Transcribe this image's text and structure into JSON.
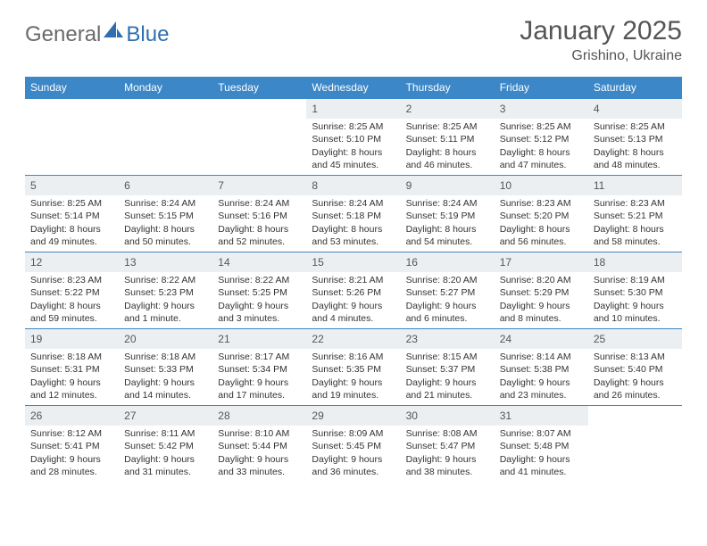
{
  "logo": {
    "part1": "General",
    "part2": "Blue"
  },
  "title": "January 2025",
  "location": "Grishino, Ukraine",
  "colors": {
    "header_bg": "#3c87c7",
    "header_text": "#ffffff",
    "daynum_bg": "#eceff1",
    "border": "#3c87c7",
    "logo_gray": "#6a6a6a",
    "logo_blue": "#2f6fb0",
    "body_text": "#333333"
  },
  "day_headers": [
    "Sunday",
    "Monday",
    "Tuesday",
    "Wednesday",
    "Thursday",
    "Friday",
    "Saturday"
  ],
  "weeks": [
    [
      {
        "n": "",
        "sr": "",
        "ss": "",
        "dl": ""
      },
      {
        "n": "",
        "sr": "",
        "ss": "",
        "dl": ""
      },
      {
        "n": "",
        "sr": "",
        "ss": "",
        "dl": ""
      },
      {
        "n": "1",
        "sr": "Sunrise: 8:25 AM",
        "ss": "Sunset: 5:10 PM",
        "dl": "Daylight: 8 hours and 45 minutes."
      },
      {
        "n": "2",
        "sr": "Sunrise: 8:25 AM",
        "ss": "Sunset: 5:11 PM",
        "dl": "Daylight: 8 hours and 46 minutes."
      },
      {
        "n": "3",
        "sr": "Sunrise: 8:25 AM",
        "ss": "Sunset: 5:12 PM",
        "dl": "Daylight: 8 hours and 47 minutes."
      },
      {
        "n": "4",
        "sr": "Sunrise: 8:25 AM",
        "ss": "Sunset: 5:13 PM",
        "dl": "Daylight: 8 hours and 48 minutes."
      }
    ],
    [
      {
        "n": "5",
        "sr": "Sunrise: 8:25 AM",
        "ss": "Sunset: 5:14 PM",
        "dl": "Daylight: 8 hours and 49 minutes."
      },
      {
        "n": "6",
        "sr": "Sunrise: 8:24 AM",
        "ss": "Sunset: 5:15 PM",
        "dl": "Daylight: 8 hours and 50 minutes."
      },
      {
        "n": "7",
        "sr": "Sunrise: 8:24 AM",
        "ss": "Sunset: 5:16 PM",
        "dl": "Daylight: 8 hours and 52 minutes."
      },
      {
        "n": "8",
        "sr": "Sunrise: 8:24 AM",
        "ss": "Sunset: 5:18 PM",
        "dl": "Daylight: 8 hours and 53 minutes."
      },
      {
        "n": "9",
        "sr": "Sunrise: 8:24 AM",
        "ss": "Sunset: 5:19 PM",
        "dl": "Daylight: 8 hours and 54 minutes."
      },
      {
        "n": "10",
        "sr": "Sunrise: 8:23 AM",
        "ss": "Sunset: 5:20 PM",
        "dl": "Daylight: 8 hours and 56 minutes."
      },
      {
        "n": "11",
        "sr": "Sunrise: 8:23 AM",
        "ss": "Sunset: 5:21 PM",
        "dl": "Daylight: 8 hours and 58 minutes."
      }
    ],
    [
      {
        "n": "12",
        "sr": "Sunrise: 8:23 AM",
        "ss": "Sunset: 5:22 PM",
        "dl": "Daylight: 8 hours and 59 minutes."
      },
      {
        "n": "13",
        "sr": "Sunrise: 8:22 AM",
        "ss": "Sunset: 5:23 PM",
        "dl": "Daylight: 9 hours and 1 minute."
      },
      {
        "n": "14",
        "sr": "Sunrise: 8:22 AM",
        "ss": "Sunset: 5:25 PM",
        "dl": "Daylight: 9 hours and 3 minutes."
      },
      {
        "n": "15",
        "sr": "Sunrise: 8:21 AM",
        "ss": "Sunset: 5:26 PM",
        "dl": "Daylight: 9 hours and 4 minutes."
      },
      {
        "n": "16",
        "sr": "Sunrise: 8:20 AM",
        "ss": "Sunset: 5:27 PM",
        "dl": "Daylight: 9 hours and 6 minutes."
      },
      {
        "n": "17",
        "sr": "Sunrise: 8:20 AM",
        "ss": "Sunset: 5:29 PM",
        "dl": "Daylight: 9 hours and 8 minutes."
      },
      {
        "n": "18",
        "sr": "Sunrise: 8:19 AM",
        "ss": "Sunset: 5:30 PM",
        "dl": "Daylight: 9 hours and 10 minutes."
      }
    ],
    [
      {
        "n": "19",
        "sr": "Sunrise: 8:18 AM",
        "ss": "Sunset: 5:31 PM",
        "dl": "Daylight: 9 hours and 12 minutes."
      },
      {
        "n": "20",
        "sr": "Sunrise: 8:18 AM",
        "ss": "Sunset: 5:33 PM",
        "dl": "Daylight: 9 hours and 14 minutes."
      },
      {
        "n": "21",
        "sr": "Sunrise: 8:17 AM",
        "ss": "Sunset: 5:34 PM",
        "dl": "Daylight: 9 hours and 17 minutes."
      },
      {
        "n": "22",
        "sr": "Sunrise: 8:16 AM",
        "ss": "Sunset: 5:35 PM",
        "dl": "Daylight: 9 hours and 19 minutes."
      },
      {
        "n": "23",
        "sr": "Sunrise: 8:15 AM",
        "ss": "Sunset: 5:37 PM",
        "dl": "Daylight: 9 hours and 21 minutes."
      },
      {
        "n": "24",
        "sr": "Sunrise: 8:14 AM",
        "ss": "Sunset: 5:38 PM",
        "dl": "Daylight: 9 hours and 23 minutes."
      },
      {
        "n": "25",
        "sr": "Sunrise: 8:13 AM",
        "ss": "Sunset: 5:40 PM",
        "dl": "Daylight: 9 hours and 26 minutes."
      }
    ],
    [
      {
        "n": "26",
        "sr": "Sunrise: 8:12 AM",
        "ss": "Sunset: 5:41 PM",
        "dl": "Daylight: 9 hours and 28 minutes."
      },
      {
        "n": "27",
        "sr": "Sunrise: 8:11 AM",
        "ss": "Sunset: 5:42 PM",
        "dl": "Daylight: 9 hours and 31 minutes."
      },
      {
        "n": "28",
        "sr": "Sunrise: 8:10 AM",
        "ss": "Sunset: 5:44 PM",
        "dl": "Daylight: 9 hours and 33 minutes."
      },
      {
        "n": "29",
        "sr": "Sunrise: 8:09 AM",
        "ss": "Sunset: 5:45 PM",
        "dl": "Daylight: 9 hours and 36 minutes."
      },
      {
        "n": "30",
        "sr": "Sunrise: 8:08 AM",
        "ss": "Sunset: 5:47 PM",
        "dl": "Daylight: 9 hours and 38 minutes."
      },
      {
        "n": "31",
        "sr": "Sunrise: 8:07 AM",
        "ss": "Sunset: 5:48 PM",
        "dl": "Daylight: 9 hours and 41 minutes."
      },
      {
        "n": "",
        "sr": "",
        "ss": "",
        "dl": ""
      }
    ]
  ]
}
